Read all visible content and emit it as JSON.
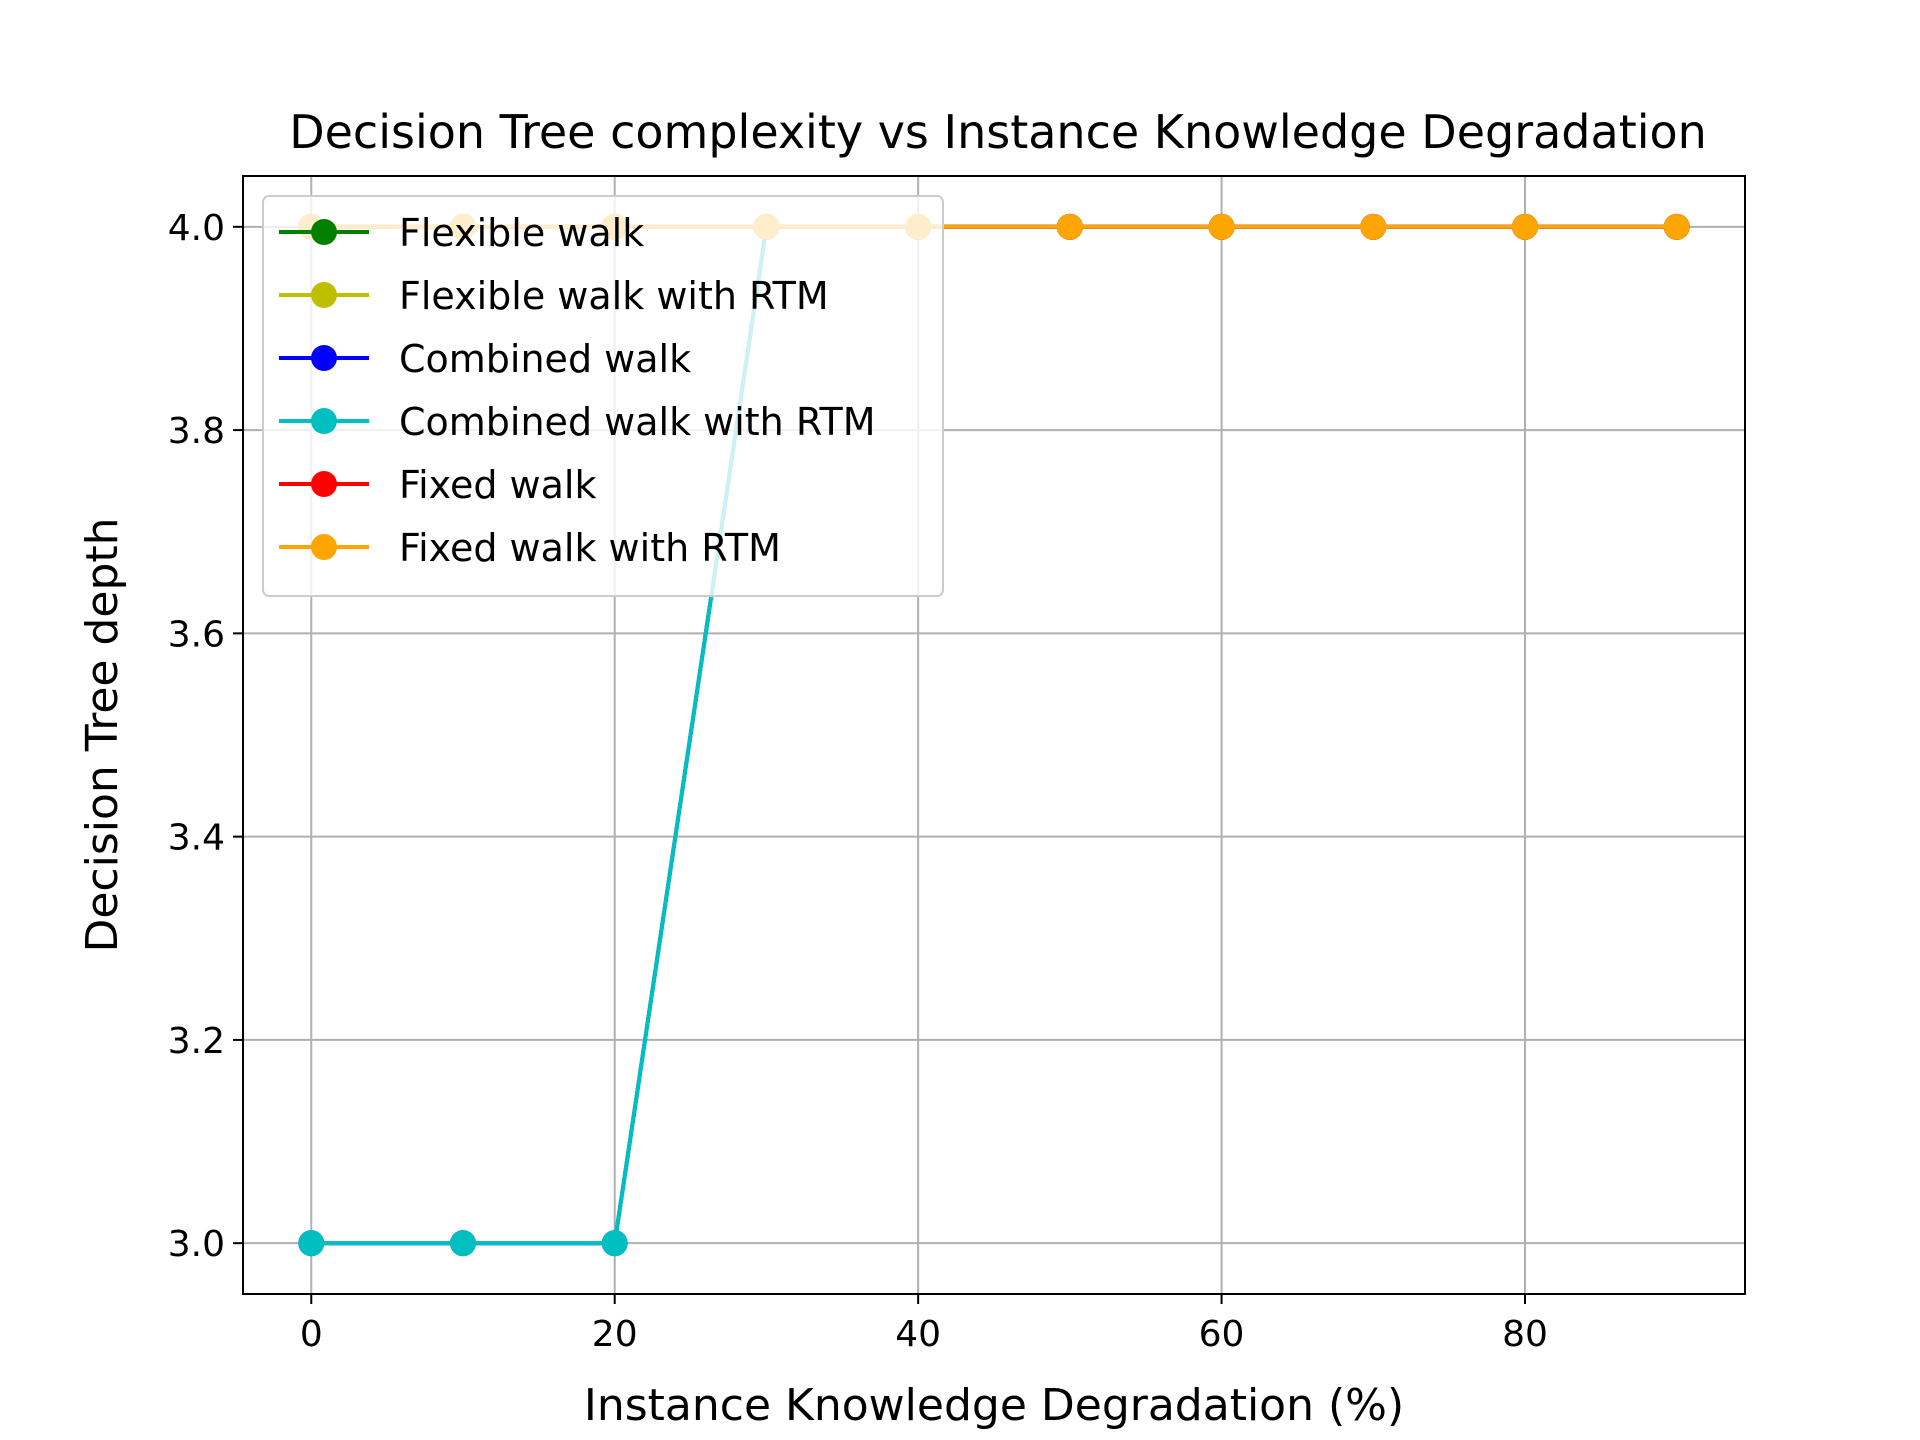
{
  "chart_data": {
    "type": "line",
    "title": "Decision Tree complexity vs Instance Knowledge Degradation",
    "xlabel": "Instance Knowledge Degradation (%)",
    "ylabel": "Decision Tree depth",
    "xlim": [
      -4.5,
      94.5
    ],
    "ylim": [
      2.95,
      4.05
    ],
    "xticks": [
      0,
      20,
      40,
      60,
      80
    ],
    "yticks": [
      3.0,
      3.2,
      3.4,
      3.6,
      3.8,
      4.0
    ],
    "xtick_labels": [
      "0",
      "20",
      "40",
      "60",
      "80"
    ],
    "ytick_labels": [
      "3.0",
      "3.2",
      "3.4",
      "3.6",
      "3.8",
      "4.0"
    ],
    "grid": true,
    "legend_position": "top-left",
    "x": [
      0,
      10,
      20,
      30,
      40,
      50,
      60,
      70,
      80,
      90
    ],
    "series": [
      {
        "name": "Flexible walk",
        "color": "#008000",
        "values": [
          4,
          4,
          4,
          4,
          4,
          4,
          4,
          4,
          4,
          4
        ]
      },
      {
        "name": "Flexible walk with RTM",
        "color": "#bfbf00",
        "values": [
          4,
          4,
          4,
          4,
          4,
          4,
          4,
          4,
          4,
          4
        ]
      },
      {
        "name": "Combined walk",
        "color": "#0000ff",
        "values": [
          3,
          3,
          3,
          4,
          4,
          4,
          4,
          4,
          4,
          4
        ]
      },
      {
        "name": "Combined walk with RTM",
        "color": "#00bfbf",
        "values": [
          3,
          3,
          3,
          4,
          4,
          4,
          4,
          4,
          4,
          4
        ]
      },
      {
        "name": "Fixed walk",
        "color": "#ff0000",
        "values": [
          4,
          4,
          4,
          4,
          4,
          4,
          4,
          4,
          4,
          4
        ]
      },
      {
        "name": "Fixed walk with RTM",
        "color": "#ffa500",
        "values": [
          4,
          4,
          4,
          4,
          4,
          4,
          4,
          4,
          4,
          4
        ]
      }
    ]
  }
}
